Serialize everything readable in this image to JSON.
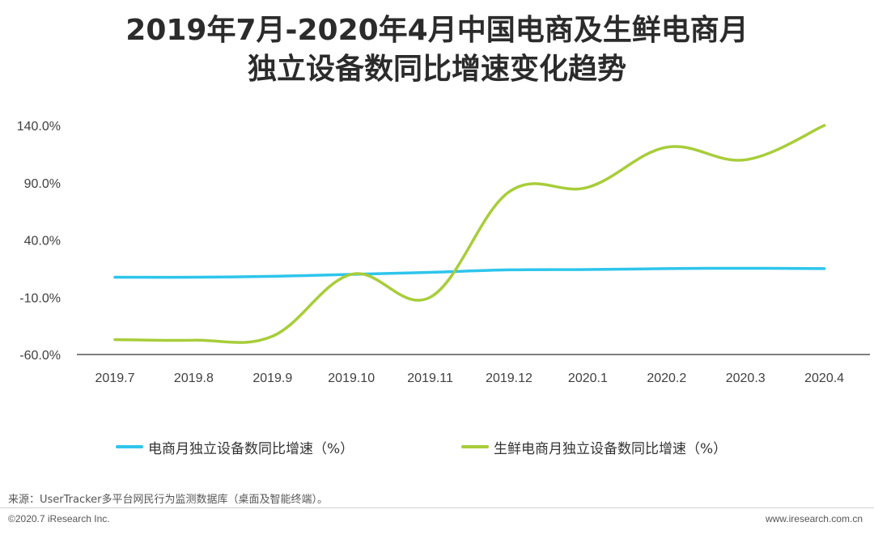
{
  "title_line1": "2019年7月-2020年4月中国电商及生鲜电商月",
  "title_line2": "独立设备数同比增速变化趋势",
  "chart_data": {
    "type": "line",
    "categories": [
      "2019.7",
      "2019.8",
      "2019.9",
      "2019.10",
      "2019.11",
      "2019.12",
      "2020.1",
      "2020.2",
      "2020.3",
      "2020.4"
    ],
    "yticks": [
      "140.0%",
      "90.0%",
      "40.0%",
      "-10.0%",
      "-60.0%"
    ],
    "ylim": [
      -60,
      140
    ],
    "grid": false,
    "legend_position": "bottom",
    "series": [
      {
        "name": "电商月独立设备数同比增速（%）",
        "color": "#2ec5ec",
        "values": [
          7.5,
          7.5,
          8.3,
          10.0,
          11.7,
          13.9,
          14.2,
          15.0,
          15.3,
          15.0
        ]
      },
      {
        "name": "生鲜电商月独立设备数同比增速（%）",
        "color": "#a8cd3a",
        "values": [
          -47.0,
          -47.5,
          -44.0,
          10.0,
          -10.0,
          82.0,
          86.0,
          121.0,
          110.0,
          140.0
        ]
      }
    ]
  },
  "source": "来源：UserTracker多平台网民行为监测数据库（桌面及智能终端）。",
  "copyright": "©2020.7 iResearch Inc.",
  "site": "www.iresearch.com.cn"
}
